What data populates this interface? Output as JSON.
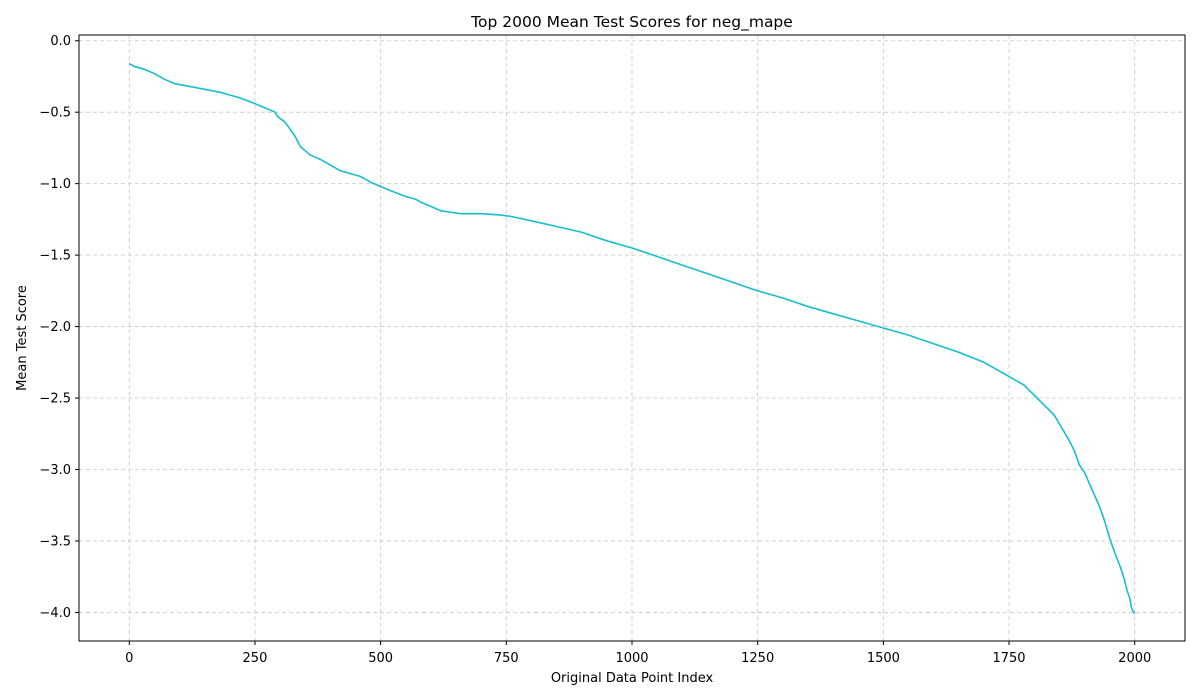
{
  "chart_data": {
    "type": "line",
    "title": "Top 2000 Mean Test Scores for neg_mape",
    "xlabel": "Original Data Point Index",
    "ylabel": "Mean Test Score",
    "xlim": [
      -100,
      2100
    ],
    "ylim": [
      -4.2,
      0.04
    ],
    "xticks": [
      0,
      250,
      500,
      750,
      1000,
      1250,
      1500,
      1750,
      2000
    ],
    "xtick_labels": [
      "0",
      "250",
      "500",
      "750",
      "1000",
      "1250",
      "1500",
      "1750",
      "2000"
    ],
    "yticks": [
      0.0,
      -0.5,
      -1.0,
      -1.5,
      -2.0,
      -2.5,
      -3.0,
      -3.5,
      -4.0
    ],
    "ytick_labels": [
      "0.0",
      "−0.5",
      "−1.0",
      "−1.5",
      "−2.0",
      "−2.5",
      "−3.0",
      "−3.5",
      "−4.0"
    ],
    "grid": true,
    "line_color": "#17becf",
    "series": [
      {
        "x": [
          0,
          10,
          30,
          50,
          70,
          90,
          120,
          150,
          180,
          200,
          220,
          250,
          270,
          290,
          295,
          310,
          320,
          330,
          340,
          360,
          380,
          400,
          420,
          440,
          460,
          470,
          480,
          500,
          520,
          550,
          570,
          580,
          600,
          620,
          640,
          660,
          700,
          740,
          760,
          800,
          850,
          900,
          950,
          1000,
          1050,
          1100,
          1150,
          1200,
          1250,
          1300,
          1350,
          1400,
          1450,
          1500,
          1550,
          1600,
          1650,
          1700,
          1750,
          1780,
          1800,
          1820,
          1840,
          1850,
          1860,
          1870,
          1880,
          1885,
          1890,
          1900,
          1910,
          1920,
          1930,
          1940,
          1945,
          1950,
          1960,
          1970,
          1975,
          1980,
          1985,
          1990,
          1993,
          1996,
          2000
        ],
        "y": [
          -0.16,
          -0.18,
          -0.2,
          -0.23,
          -0.27,
          -0.3,
          -0.32,
          -0.34,
          -0.36,
          -0.38,
          -0.4,
          -0.44,
          -0.47,
          -0.5,
          -0.53,
          -0.57,
          -0.62,
          -0.67,
          -0.74,
          -0.8,
          -0.83,
          -0.87,
          -0.91,
          -0.93,
          -0.95,
          -0.97,
          -0.99,
          -1.02,
          -1.05,
          -1.09,
          -1.11,
          -1.13,
          -1.16,
          -1.19,
          -1.2,
          -1.21,
          -1.21,
          -1.22,
          -1.23,
          -1.26,
          -1.3,
          -1.34,
          -1.4,
          -1.45,
          -1.51,
          -1.57,
          -1.63,
          -1.69,
          -1.75,
          -1.8,
          -1.86,
          -1.91,
          -1.96,
          -2.01,
          -2.06,
          -2.12,
          -2.18,
          -2.25,
          -2.35,
          -2.41,
          -2.48,
          -2.55,
          -2.62,
          -2.68,
          -2.74,
          -2.8,
          -2.87,
          -2.92,
          -2.97,
          -3.02,
          -3.1,
          -3.18,
          -3.26,
          -3.36,
          -3.42,
          -3.48,
          -3.58,
          -3.67,
          -3.72,
          -3.78,
          -3.85,
          -3.9,
          -3.96,
          -3.99,
          -4.01
        ]
      }
    ]
  }
}
